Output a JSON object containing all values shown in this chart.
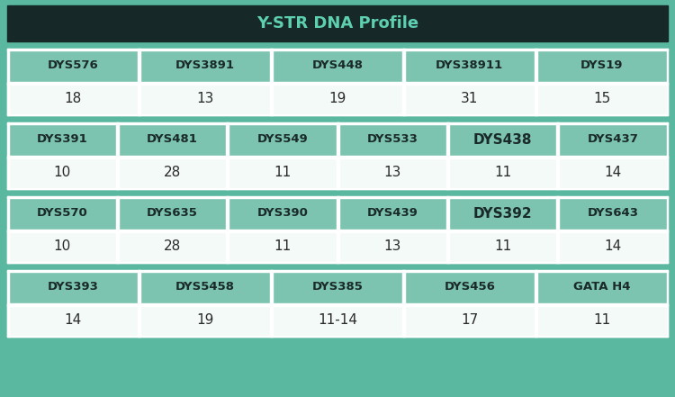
{
  "title": "Y-STR DNA Profile",
  "title_bg": "#162828",
  "title_color": "#5ecfb1",
  "header_bg": "#7cc4b0",
  "header_color": "#1a2a2a",
  "value_bg": "#f4faf8",
  "value_color": "#2a2a2a",
  "outer_bg": "#5ab8a0",
  "border_color": "#ffffff",
  "title_fontsize": 13,
  "header_fontsize": 9.5,
  "header_bold_fontsize": 11,
  "value_fontsize": 11,
  "rows": [
    {
      "headers": [
        "DYS576",
        "DYS3891",
        "DYS448",
        "DYS38911",
        "DYS19"
      ],
      "values": [
        "18",
        "13",
        "19",
        "31",
        "15"
      ],
      "bold_headers": []
    },
    {
      "headers": [
        "DYS391",
        "DYS481",
        "DYS549",
        "DYS533",
        "DYS438",
        "DYS437"
      ],
      "values": [
        "10",
        "28",
        "11",
        "13",
        "11",
        "14"
      ],
      "bold_headers": [
        "DYS438"
      ]
    },
    {
      "headers": [
        "DYS570",
        "DYS635",
        "DYS390",
        "DYS439",
        "DYS392",
        "DYS643"
      ],
      "values": [
        "10",
        "28",
        "11",
        "13",
        "11",
        "14"
      ],
      "bold_headers": [
        "DYS392"
      ]
    },
    {
      "headers": [
        "DYS393",
        "DYS5458",
        "DYS385",
        "DYS456",
        "GATA H4"
      ],
      "values": [
        "14",
        "19",
        "11-14",
        "17",
        "11"
      ],
      "bold_headers": []
    }
  ]
}
